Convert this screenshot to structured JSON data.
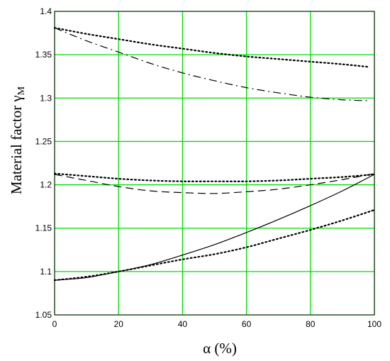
{
  "chart_data": {
    "type": "line",
    "xlabel": "α (%)",
    "ylabel_main": "Material factor ",
    "ylabel_symbol": "γ",
    "ylabel_subscript": "M",
    "xlim": [
      0,
      100
    ],
    "ylim": [
      1.05,
      1.4
    ],
    "xticks": [
      0,
      20,
      40,
      60,
      80,
      100
    ],
    "yticks": [
      1.05,
      1.1,
      1.15,
      1.2,
      1.25,
      1.3,
      1.35,
      1.4
    ],
    "xtick_labels": [
      "0",
      "20",
      "40",
      "60",
      "80",
      "100"
    ],
    "ytick_labels": [
      "1.05",
      "1.1",
      "1.15",
      "1.2",
      "1.25",
      "1.3",
      "1.35",
      "1.4"
    ],
    "grid": true,
    "grid_color": "#00dd00",
    "series": [
      {
        "style": "dotted",
        "x": [
          0,
          10,
          20,
          30,
          40,
          50,
          60,
          70,
          80,
          90,
          98
        ],
        "y": [
          1.381,
          1.374,
          1.368,
          1.362,
          1.357,
          1.352,
          1.348,
          1.345,
          1.342,
          1.339,
          1.336
        ]
      },
      {
        "style": "dashdot",
        "x": [
          0,
          10,
          20,
          30,
          40,
          50,
          60,
          70,
          80,
          90,
          98
        ],
        "y": [
          1.381,
          1.366,
          1.353,
          1.34,
          1.329,
          1.32,
          1.312,
          1.306,
          1.301,
          1.298,
          1.297
        ]
      },
      {
        "style": "dotted",
        "x": [
          0,
          10,
          20,
          30,
          40,
          50,
          60,
          70,
          80,
          90,
          100
        ],
        "y": [
          1.213,
          1.21,
          1.207,
          1.205,
          1.204,
          1.204,
          1.204,
          1.205,
          1.207,
          1.209,
          1.212
        ]
      },
      {
        "style": "dashed",
        "x": [
          0,
          10,
          20,
          30,
          40,
          50,
          60,
          70,
          80,
          90,
          100
        ],
        "y": [
          1.212,
          1.205,
          1.198,
          1.193,
          1.191,
          1.19,
          1.192,
          1.195,
          1.2,
          1.206,
          1.213
        ]
      },
      {
        "style": "solid",
        "x": [
          0,
          10,
          20,
          30,
          40,
          50,
          60,
          70,
          80,
          90,
          100
        ],
        "y": [
          1.09,
          1.093,
          1.1,
          1.108,
          1.119,
          1.131,
          1.145,
          1.16,
          1.176,
          1.193,
          1.212
        ]
      },
      {
        "style": "dotted",
        "x": [
          0,
          10,
          20,
          30,
          40,
          50,
          60,
          70,
          80,
          90,
          100
        ],
        "y": [
          1.09,
          1.094,
          1.1,
          1.107,
          1.114,
          1.12,
          1.128,
          1.138,
          1.148,
          1.159,
          1.171
        ]
      }
    ]
  }
}
